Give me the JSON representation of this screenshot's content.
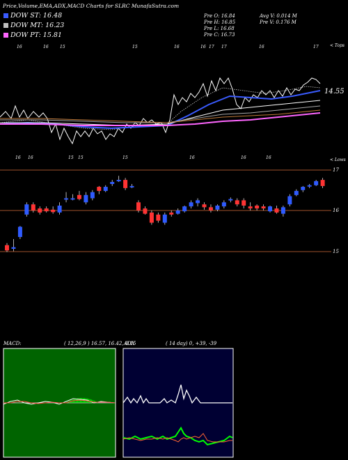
{
  "header": {
    "title": "Price,Volume,EMA,ADX,MACD Charts for SLRC MunafaSutra.com",
    "dow": [
      {
        "label": "DOW ST: 16.48",
        "color": "#3a5bff"
      },
      {
        "label": "DOW MT: 16.23",
        "color": "#c0c0c0"
      },
      {
        "label": "DOW PT: 15.81",
        "color": "#ff66ff"
      }
    ],
    "stats_left": [
      "Pre O: 16.84",
      "Pre H: 16.85",
      "Pre L: 16.68",
      "Pre C: 16.73"
    ],
    "stats_right": [
      "Avg V: 0.014 M",
      "Pre V: 0.176 M"
    ]
  },
  "ema_panel": {
    "top_label": "< Tops",
    "bottom_label": "< Lows",
    "price_label": "14.55",
    "top_ticks": [
      "16",
      "16",
      "15",
      "15",
      "16",
      "16",
      "17",
      "17",
      "16",
      "17"
    ],
    "bottom_ticks": [
      "16",
      "16",
      "15",
      "15",
      "15",
      "16",
      "16",
      "16"
    ]
  },
  "candle_panel": {
    "axis_labels": [
      "17",
      "16",
      "15"
    ]
  },
  "macd": {
    "title": "MACD:",
    "values": "( 12,26,9 ) 16.57, 16.42, 0.15"
  },
  "adx": {
    "title": "ADX",
    "values": "( 14 day) 0, +39, -39"
  },
  "chart_data": {
    "type": "candlestick",
    "title": "SLRC",
    "ylim": [
      14.8,
      17.1
    ],
    "axis_ticks": [
      17,
      16,
      15
    ],
    "candles": [
      {
        "o": 15.15,
        "c": 15.02,
        "h": 15.2,
        "l": 14.98
      },
      {
        "o": 15.06,
        "c": 15.1,
        "h": 15.3,
        "l": 15.0
      },
      {
        "o": 15.35,
        "c": 15.6,
        "h": 15.62,
        "l": 15.3
      },
      {
        "o": 15.9,
        "c": 16.15,
        "h": 16.2,
        "l": 15.85
      },
      {
        "o": 16.15,
        "c": 16.0,
        "h": 16.2,
        "l": 15.95
      },
      {
        "o": 16.05,
        "c": 15.95,
        "h": 16.1,
        "l": 15.9
      },
      {
        "o": 16.05,
        "c": 15.98,
        "h": 16.1,
        "l": 15.95
      },
      {
        "o": 16.02,
        "c": 15.96,
        "h": 16.1,
        "l": 15.92
      },
      {
        "o": 15.95,
        "c": 16.12,
        "h": 16.2,
        "l": 15.9
      },
      {
        "o": 16.28,
        "c": 16.3,
        "h": 16.45,
        "l": 16.2
      },
      {
        "o": 16.3,
        "c": 16.3,
        "h": 16.4,
        "l": 16.25
      },
      {
        "o": 16.38,
        "c": 16.28,
        "h": 16.48,
        "l": 16.25
      },
      {
        "o": 16.2,
        "c": 16.38,
        "h": 16.45,
        "l": 16.15
      },
      {
        "o": 16.3,
        "c": 16.45,
        "h": 16.5,
        "l": 16.25
      },
      {
        "o": 16.58,
        "c": 16.48,
        "h": 16.6,
        "l": 16.4
      },
      {
        "o": 16.48,
        "c": 16.58,
        "h": 16.62,
        "l": 16.45
      },
      {
        "o": 16.65,
        "c": 16.7,
        "h": 16.75,
        "l": 16.6
      },
      {
        "o": 16.75,
        "c": 16.75,
        "h": 16.85,
        "l": 16.7
      },
      {
        "o": 16.75,
        "c": 16.55,
        "h": 16.8,
        "l": 16.5
      },
      {
        "o": 16.6,
        "c": 16.6,
        "h": 16.65,
        "l": 16.55
      },
      {
        "o": 16.2,
        "c": 16.0,
        "h": 16.25,
        "l": 15.95
      },
      {
        "o": 16.05,
        "c": 15.92,
        "h": 16.1,
        "l": 15.9
      },
      {
        "o": 15.95,
        "c": 15.7,
        "h": 16.0,
        "l": 15.65
      },
      {
        "o": 15.9,
        "c": 15.75,
        "h": 15.95,
        "l": 15.7
      },
      {
        "o": 15.7,
        "c": 15.9,
        "h": 15.95,
        "l": 15.65
      },
      {
        "o": 15.95,
        "c": 15.9,
        "h": 16.0,
        "l": 15.85
      },
      {
        "o": 15.92,
        "c": 16.0,
        "h": 16.05,
        "l": 15.9
      },
      {
        "o": 15.98,
        "c": 16.1,
        "h": 16.12,
        "l": 15.95
      },
      {
        "o": 16.1,
        "c": 16.2,
        "h": 16.25,
        "l": 16.05
      },
      {
        "o": 16.18,
        "c": 16.25,
        "h": 16.3,
        "l": 16.1
      },
      {
        "o": 16.15,
        "c": 16.08,
        "h": 16.2,
        "l": 16.02
      },
      {
        "o": 16.08,
        "c": 16.0,
        "h": 16.15,
        "l": 15.95
      },
      {
        "o": 16.02,
        "c": 16.12,
        "h": 16.15,
        "l": 15.98
      },
      {
        "o": 16.1,
        "c": 16.2,
        "h": 16.25,
        "l": 16.05
      },
      {
        "o": 16.25,
        "c": 16.28,
        "h": 16.32,
        "l": 16.2
      },
      {
        "o": 16.25,
        "c": 16.15,
        "h": 16.3,
        "l": 16.1
      },
      {
        "o": 16.25,
        "c": 16.12,
        "h": 16.3,
        "l": 16.05
      },
      {
        "o": 16.1,
        "c": 16.05,
        "h": 16.2,
        "l": 16.0
      },
      {
        "o": 16.12,
        "c": 16.05,
        "h": 16.15,
        "l": 16.0
      },
      {
        "o": 16.1,
        "c": 16.05,
        "h": 16.15,
        "l": 16.0
      },
      {
        "o": 15.98,
        "c": 16.1,
        "h": 16.12,
        "l": 15.95
      },
      {
        "o": 16.05,
        "c": 15.95,
        "h": 16.12,
        "l": 15.92
      },
      {
        "o": 15.92,
        "c": 16.08,
        "h": 16.12,
        "l": 15.85
      },
      {
        "o": 16.15,
        "c": 16.35,
        "h": 16.4,
        "l": 16.1
      },
      {
        "o": 16.38,
        "c": 16.48,
        "h": 16.52,
        "l": 16.35
      },
      {
        "o": 16.5,
        "c": 16.58,
        "h": 16.6,
        "l": 16.45
      },
      {
        "o": 16.6,
        "c": 16.62,
        "h": 16.65,
        "l": 16.55
      },
      {
        "o": 16.62,
        "c": 16.72,
        "h": 16.75,
        "l": 16.6
      },
      {
        "o": 16.75,
        "c": 16.6,
        "h": 16.8,
        "l": 16.55
      }
    ]
  }
}
